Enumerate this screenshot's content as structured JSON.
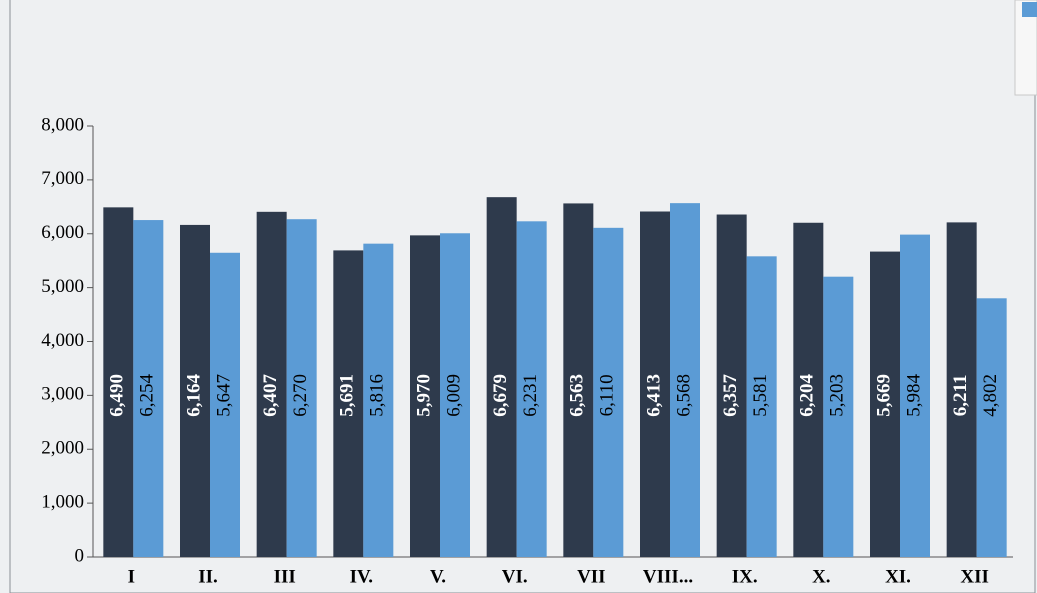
{
  "chart_data": {
    "type": "bar",
    "categories": [
      "I",
      "II.",
      "III",
      "IV.",
      "V.",
      "VI.",
      "VII",
      "VIII...",
      "IX.",
      "X.",
      "XI.",
      "XII"
    ],
    "series": [
      {
        "color": "#2e3a4c",
        "values": [
          6490,
          6164,
          6407,
          5691,
          5970,
          6679,
          6563,
          6413,
          6357,
          6204,
          5669,
          6211
        ],
        "value_labels": [
          "6,490",
          "6,164",
          "6,407",
          "5,691",
          "5,970",
          "6,679",
          "6,563",
          "6,413",
          "6,357",
          "6,204",
          "5,669",
          "6,211"
        ]
      },
      {
        "color": "#5b9bd5",
        "values": [
          6254,
          5647,
          6270,
          5816,
          6009,
          6231,
          6110,
          6568,
          5581,
          5203,
          5984,
          4802
        ],
        "value_labels": [
          "6,254",
          "5,647",
          "6,270",
          "5,816",
          "6,009",
          "6,231",
          "6,110",
          "6,568",
          "5,581",
          "5,203",
          "5,984",
          "4,802"
        ]
      }
    ],
    "ylim": [
      0,
      8000
    ],
    "yticks": [
      0,
      {
        "value": 1000,
        "label": "1,000"
      },
      {
        "value": 2000,
        "label": "2,000"
      },
      {
        "value": 3000,
        "label": "3,000"
      },
      {
        "value": 4000,
        "label": "4,000"
      },
      {
        "value": 5000,
        "label": "5,000"
      },
      {
        "value": 6000,
        "label": "6,000"
      },
      {
        "value": 7000,
        "label": "7,000"
      },
      {
        "value": 8000,
        "label": "8,000"
      }
    ]
  }
}
